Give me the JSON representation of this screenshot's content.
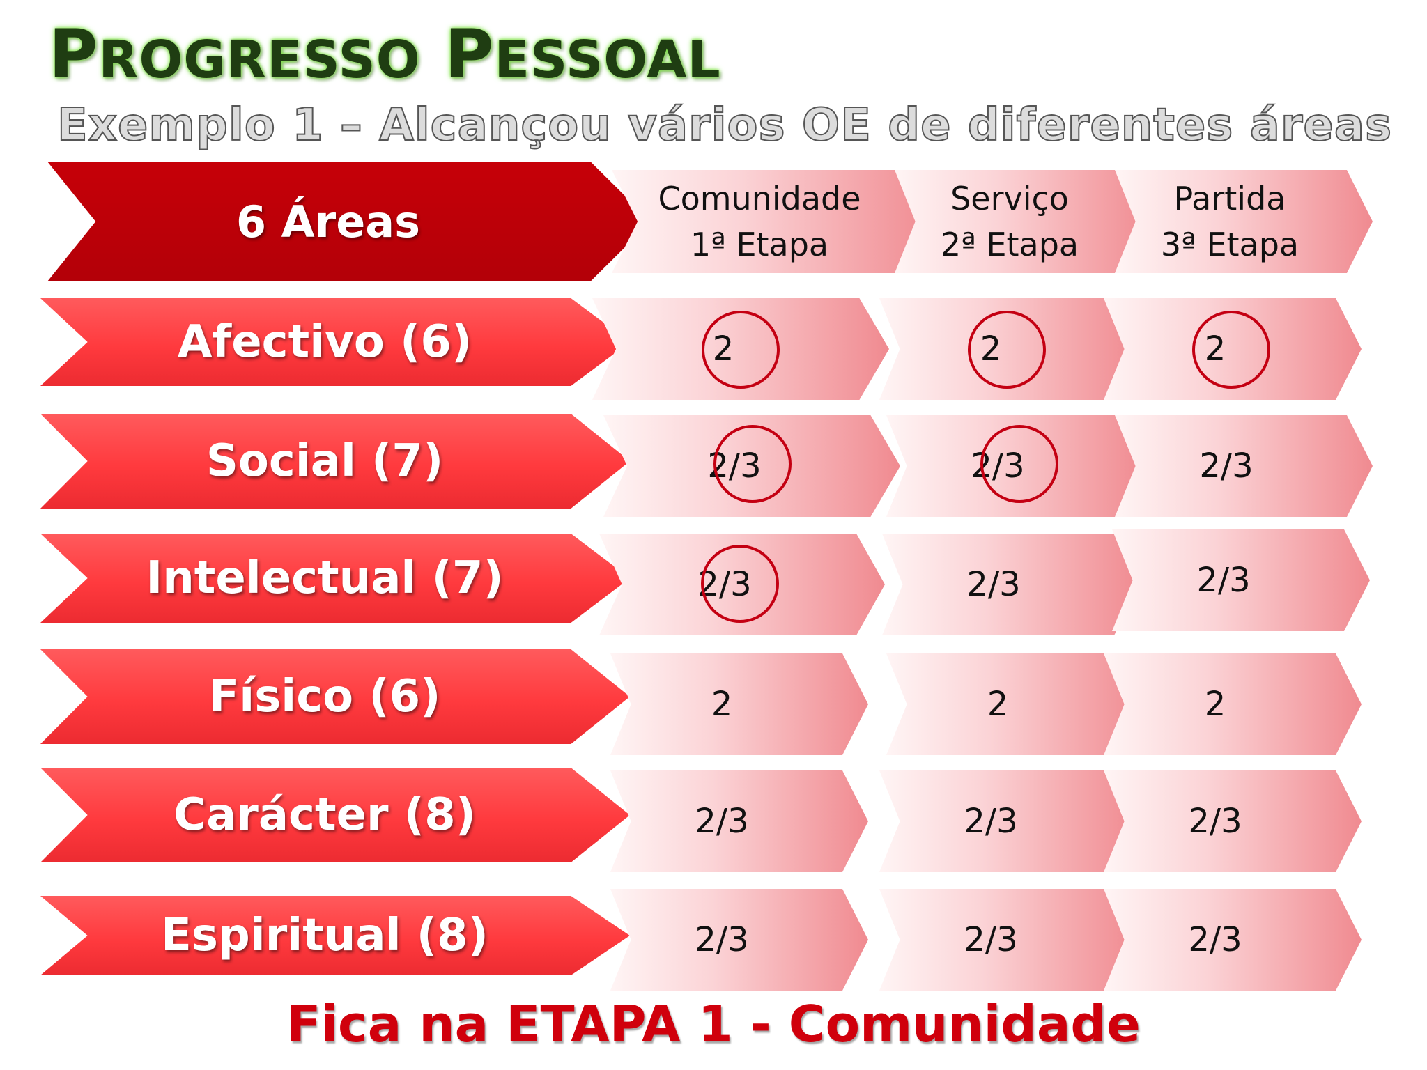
{
  "title": {
    "first_initial": "P",
    "first_rest": "ROGRESSO",
    "second_initial": "P",
    "second_rest": "ESSOAL"
  },
  "subtitle": "Exemplo 1 – Alcançou vários OE de diferentes áreas",
  "table": {
    "header_label": "6 Áreas",
    "stages": [
      {
        "label": "Comunidade\n1ª Etapa"
      },
      {
        "label": "Serviço\n2ª Etapa"
      },
      {
        "label": "Partida\n3ª Etapa"
      }
    ],
    "rows": [
      {
        "area": "Afectivo (6)",
        "values": [
          "2",
          "2",
          "2"
        ],
        "circled": [
          true,
          true,
          true
        ]
      },
      {
        "area": "Social (7)",
        "values": [
          "2/3",
          "2/3",
          "2/3"
        ],
        "circled": [
          true,
          true,
          false
        ]
      },
      {
        "area": "Intelectual (7)",
        "values": [
          "2/3",
          "2/3",
          "2/3"
        ],
        "circled": [
          true,
          false,
          false
        ]
      },
      {
        "area": "Físico (6)",
        "values": [
          "2",
          "2",
          "2"
        ],
        "circled": [
          false,
          false,
          false
        ]
      },
      {
        "area": "Carácter (8)",
        "values": [
          "2/3",
          "2/3",
          "2/3"
        ],
        "circled": [
          false,
          false,
          false
        ]
      },
      {
        "area": "Espiritual (8)",
        "values": [
          "2/3",
          "2/3",
          "2/3"
        ],
        "circled": [
          false,
          false,
          false
        ]
      }
    ]
  },
  "footer": "Fica na ETAPA 1 - Comunidade",
  "colors": {
    "header_area": "#c00008",
    "area": "#ff4448",
    "circle": "#c40012",
    "footer": "#d0000c"
  }
}
